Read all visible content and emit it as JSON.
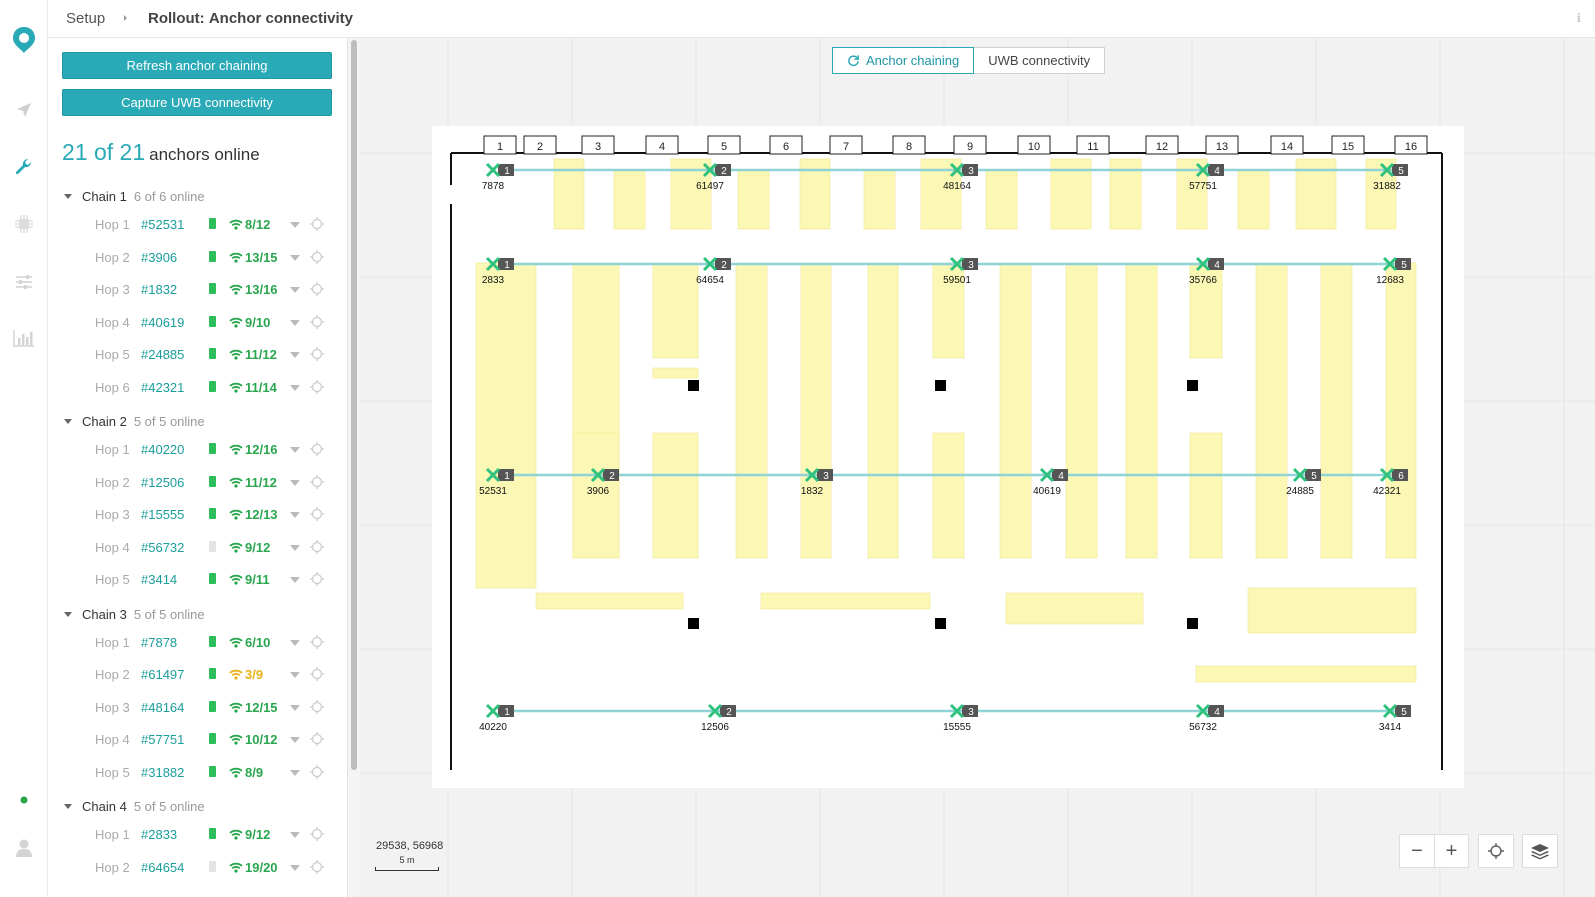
{
  "breadcrumb": {
    "setup": "Setup",
    "rollout": "Rollout",
    "page": "Anchor connectivity"
  },
  "buttons": {
    "refresh": "Refresh anchor chaining",
    "capture": "Capture UWB connectivity"
  },
  "summary": {
    "count": "21 of 21",
    "label": "anchors online"
  },
  "chains": [
    {
      "name": "Chain 1",
      "status": "6 of 6 online",
      "hops": [
        {
          "hop": "Hop 1",
          "id": "#52531",
          "battery": true,
          "signal": "8/12",
          "warn": false
        },
        {
          "hop": "Hop 2",
          "id": "#3906",
          "battery": true,
          "signal": "13/15",
          "warn": false
        },
        {
          "hop": "Hop 3",
          "id": "#1832",
          "battery": true,
          "signal": "13/16",
          "warn": false
        },
        {
          "hop": "Hop 4",
          "id": "#40619",
          "battery": true,
          "signal": "9/10",
          "warn": false
        },
        {
          "hop": "Hop 5",
          "id": "#24885",
          "battery": true,
          "signal": "11/12",
          "warn": false
        },
        {
          "hop": "Hop 6",
          "id": "#42321",
          "battery": true,
          "signal": "11/14",
          "warn": false
        }
      ]
    },
    {
      "name": "Chain 2",
      "status": "5 of 5 online",
      "hops": [
        {
          "hop": "Hop 1",
          "id": "#40220",
          "battery": true,
          "signal": "12/16",
          "warn": false
        },
        {
          "hop": "Hop 2",
          "id": "#12506",
          "battery": true,
          "signal": "11/12",
          "warn": false
        },
        {
          "hop": "Hop 3",
          "id": "#15555",
          "battery": true,
          "signal": "12/13",
          "warn": false
        },
        {
          "hop": "Hop 4",
          "id": "#56732",
          "battery": false,
          "signal": "9/12",
          "warn": false
        },
        {
          "hop": "Hop 5",
          "id": "#3414",
          "battery": true,
          "signal": "9/11",
          "warn": false
        }
      ]
    },
    {
      "name": "Chain 3",
      "status": "5 of 5 online",
      "hops": [
        {
          "hop": "Hop 1",
          "id": "#7878",
          "battery": true,
          "signal": "6/10",
          "warn": false
        },
        {
          "hop": "Hop 2",
          "id": "#61497",
          "battery": true,
          "signal": "3/9",
          "warn": true
        },
        {
          "hop": "Hop 3",
          "id": "#48164",
          "battery": true,
          "signal": "12/15",
          "warn": false
        },
        {
          "hop": "Hop 4",
          "id": "#57751",
          "battery": true,
          "signal": "10/12",
          "warn": false
        },
        {
          "hop": "Hop 5",
          "id": "#31882",
          "battery": true,
          "signal": "8/9",
          "warn": false
        }
      ]
    },
    {
      "name": "Chain 4",
      "status": "5 of 5 online",
      "hops": [
        {
          "hop": "Hop 1",
          "id": "#2833",
          "battery": true,
          "signal": "9/12",
          "warn": false
        },
        {
          "hop": "Hop 2",
          "id": "#64654",
          "battery": false,
          "signal": "19/20",
          "warn": false
        }
      ]
    }
  ],
  "tabs": {
    "chaining": "Anchor chaining",
    "uwb": "UWB connectivity",
    "active": "chaining"
  },
  "map": {
    "coords": "29538, 56968",
    "scale": "5 m",
    "aisles": [
      "1",
      "2",
      "3",
      "4",
      "5",
      "6",
      "7",
      "8",
      "9",
      "10",
      "11",
      "12",
      "13",
      "14",
      "15",
      "16"
    ],
    "anchor_rows": [
      {
        "ids": [
          "7878",
          "61497",
          "48164",
          "57751",
          "31882"
        ]
      },
      {
        "ids": [
          "2833",
          "64654",
          "59501",
          "35766",
          "12683"
        ]
      },
      {
        "ids": [
          "52531",
          "3906",
          "1832",
          "40619",
          "24885",
          "42321"
        ]
      },
      {
        "ids": [
          "40220",
          "12506",
          "15555",
          "56732",
          "3414"
        ]
      }
    ]
  },
  "colors": {
    "accent": "#2aa9b6",
    "signal_ok": "#2aa64f",
    "signal_warn": "#e7b21e",
    "rack": "#fbf7b5",
    "link": "#8fd3d6"
  },
  "icons": {
    "logo": "location-pin-logo-icon",
    "navigate": "navigate-icon",
    "wrench": "wrench-icon",
    "chip": "chip-icon",
    "sliders": "sliders-icon",
    "chart": "bar-chart-icon",
    "status": "status-dot-icon",
    "user": "user-icon"
  }
}
